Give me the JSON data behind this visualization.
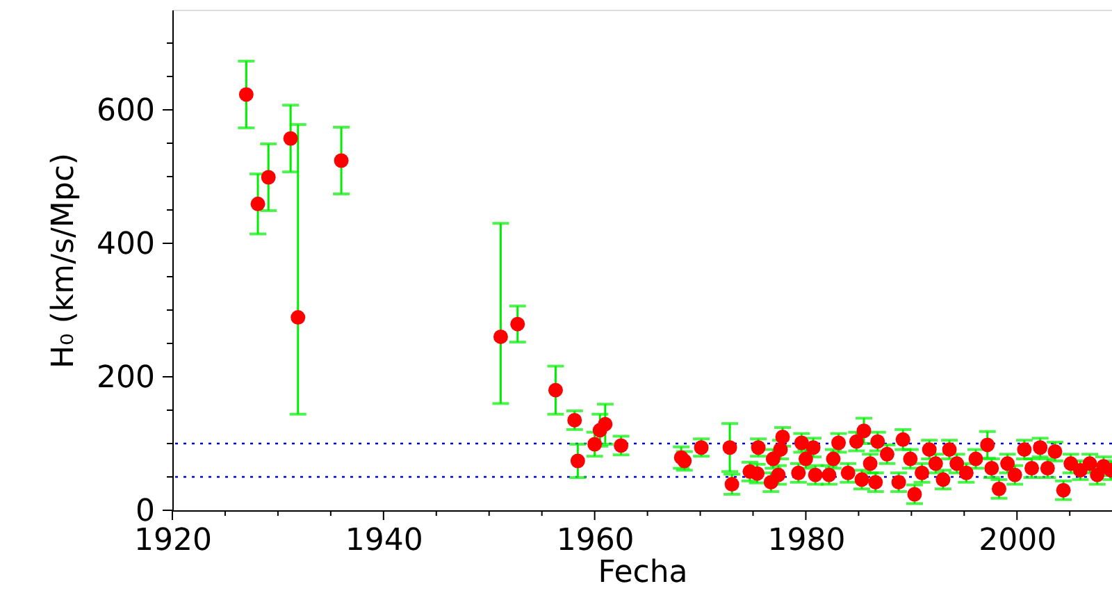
{
  "chart_data": {
    "type": "scatter",
    "xlabel": "Fecha",
    "ylabel": "H₀ (km/s/Mpc)",
    "marker": "circle",
    "grid": false,
    "xlim": [
      1920,
      2009
    ],
    "ylim": [
      0,
      750
    ],
    "xticks": [
      1920,
      {
        "value": 1925,
        "label": null
      },
      {
        "value": 1930,
        "label": null
      },
      {
        "value": 1935,
        "label": null
      },
      1940,
      {
        "value": 1945,
        "label": null
      },
      {
        "value": 1950,
        "label": null
      },
      {
        "value": 1955,
        "label": null
      },
      1960,
      {
        "value": 1965,
        "label": null
      },
      {
        "value": 1970,
        "label": null
      },
      {
        "value": 1975,
        "label": null
      },
      1980,
      {
        "value": 1985,
        "label": null
      },
      {
        "value": 1990,
        "label": null
      },
      {
        "value": 1995,
        "label": null
      },
      2000,
      {
        "value": 2005,
        "label": null
      }
    ],
    "yticks": [
      0,
      {
        "value": 50,
        "label": null
      },
      {
        "value": 100,
        "label": null
      },
      {
        "value": 150,
        "label": null
      },
      200,
      {
        "value": 250,
        "label": null
      },
      {
        "value": 300,
        "label": null
      },
      {
        "value": 350,
        "label": null
      },
      400,
      {
        "value": 450,
        "label": null
      },
      {
        "value": 500,
        "label": null
      },
      {
        "value": 550,
        "label": null
      },
      600,
      {
        "value": 650,
        "label": null
      },
      {
        "value": 700,
        "label": null
      }
    ],
    "ref_lines": [
      {
        "axis": "y",
        "value": 100,
        "color": "#0000cc",
        "line_style": "dotted"
      },
      {
        "axis": "y",
        "value": 50,
        "color": "#0000cc",
        "line_style": "dotted"
      }
    ],
    "series": [
      {
        "color": "#ff0000",
        "x": [
          1927.0,
          1928.1,
          1929.1,
          1931.2,
          1931.9,
          1936.0,
          1951.1,
          1952.7,
          1956.3,
          1958.1,
          1958.4,
          1960.0,
          1960.5,
          1961.0,
          1962.5,
          1968.2,
          1968.5,
          1970.1,
          1972.8,
          1973.0,
          1974.7,
          1975.4,
          1975.5,
          1976.7,
          1976.9,
          1977.4,
          1977.6,
          1977.8,
          1979.3,
          1979.6,
          1980.0,
          1980.7,
          1980.9,
          1982.2,
          1982.6,
          1983.1,
          1984.0,
          1984.8,
          1985.3,
          1985.5,
          1986.1,
          1986.6,
          1986.8,
          1987.7,
          1988.8,
          1989.2,
          1989.9,
          1990.3,
          1991.0,
          1991.7,
          1992.3,
          1993.0,
          1993.6,
          1994.3,
          1995.2,
          1996.1,
          1997.2,
          1997.6,
          1998.3,
          1999.1,
          1999.8,
          2000.7,
          2001.4,
          2002.2,
          2002.9,
          2003.6,
          2004.4,
          2005.1,
          2006.0,
          2006.9,
          2007.6,
          2008.2,
          2008.9
        ],
        "values": [
          623,
          459,
          499,
          557,
          289,
          524,
          260,
          279,
          180,
          135,
          74,
          99,
          120,
          129,
          97,
          79,
          74,
          94,
          94,
          39,
          58,
          55,
          94,
          42,
          77,
          53,
          91,
          110,
          56,
          101,
          77,
          94,
          53,
          53,
          77,
          101,
          56,
          103,
          46,
          119,
          70,
          42,
          103,
          84,
          42,
          106,
          77,
          24,
          56,
          91,
          70,
          46,
          91,
          70,
          56,
          77,
          98,
          63,
          32,
          70,
          53,
          91,
          63,
          94,
          63,
          88,
          30,
          70,
          60,
          70,
          53,
          66,
          60
        ],
        "errors": [
          50,
          45,
          50,
          50,
          [
            144,
            578
          ],
          50,
          [
            160,
            430
          ],
          27,
          36,
          14,
          25,
          18,
          [
            96,
            144
          ],
          30,
          14,
          16,
          14,
          13,
          36,
          15,
          14,
          14,
          13,
          14,
          14,
          14,
          14,
          14,
          14,
          14,
          14,
          14,
          14,
          14,
          14,
          14,
          14,
          14,
          14,
          19,
          14,
          14,
          14,
          14,
          14,
          15,
          14,
          14,
          14,
          14,
          14,
          14,
          14,
          14,
          14,
          14,
          20,
          14,
          14,
          14,
          14,
          14,
          14,
          14,
          14,
          14,
          14,
          14,
          14,
          14,
          14,
          14,
          14
        ]
      }
    ]
  }
}
